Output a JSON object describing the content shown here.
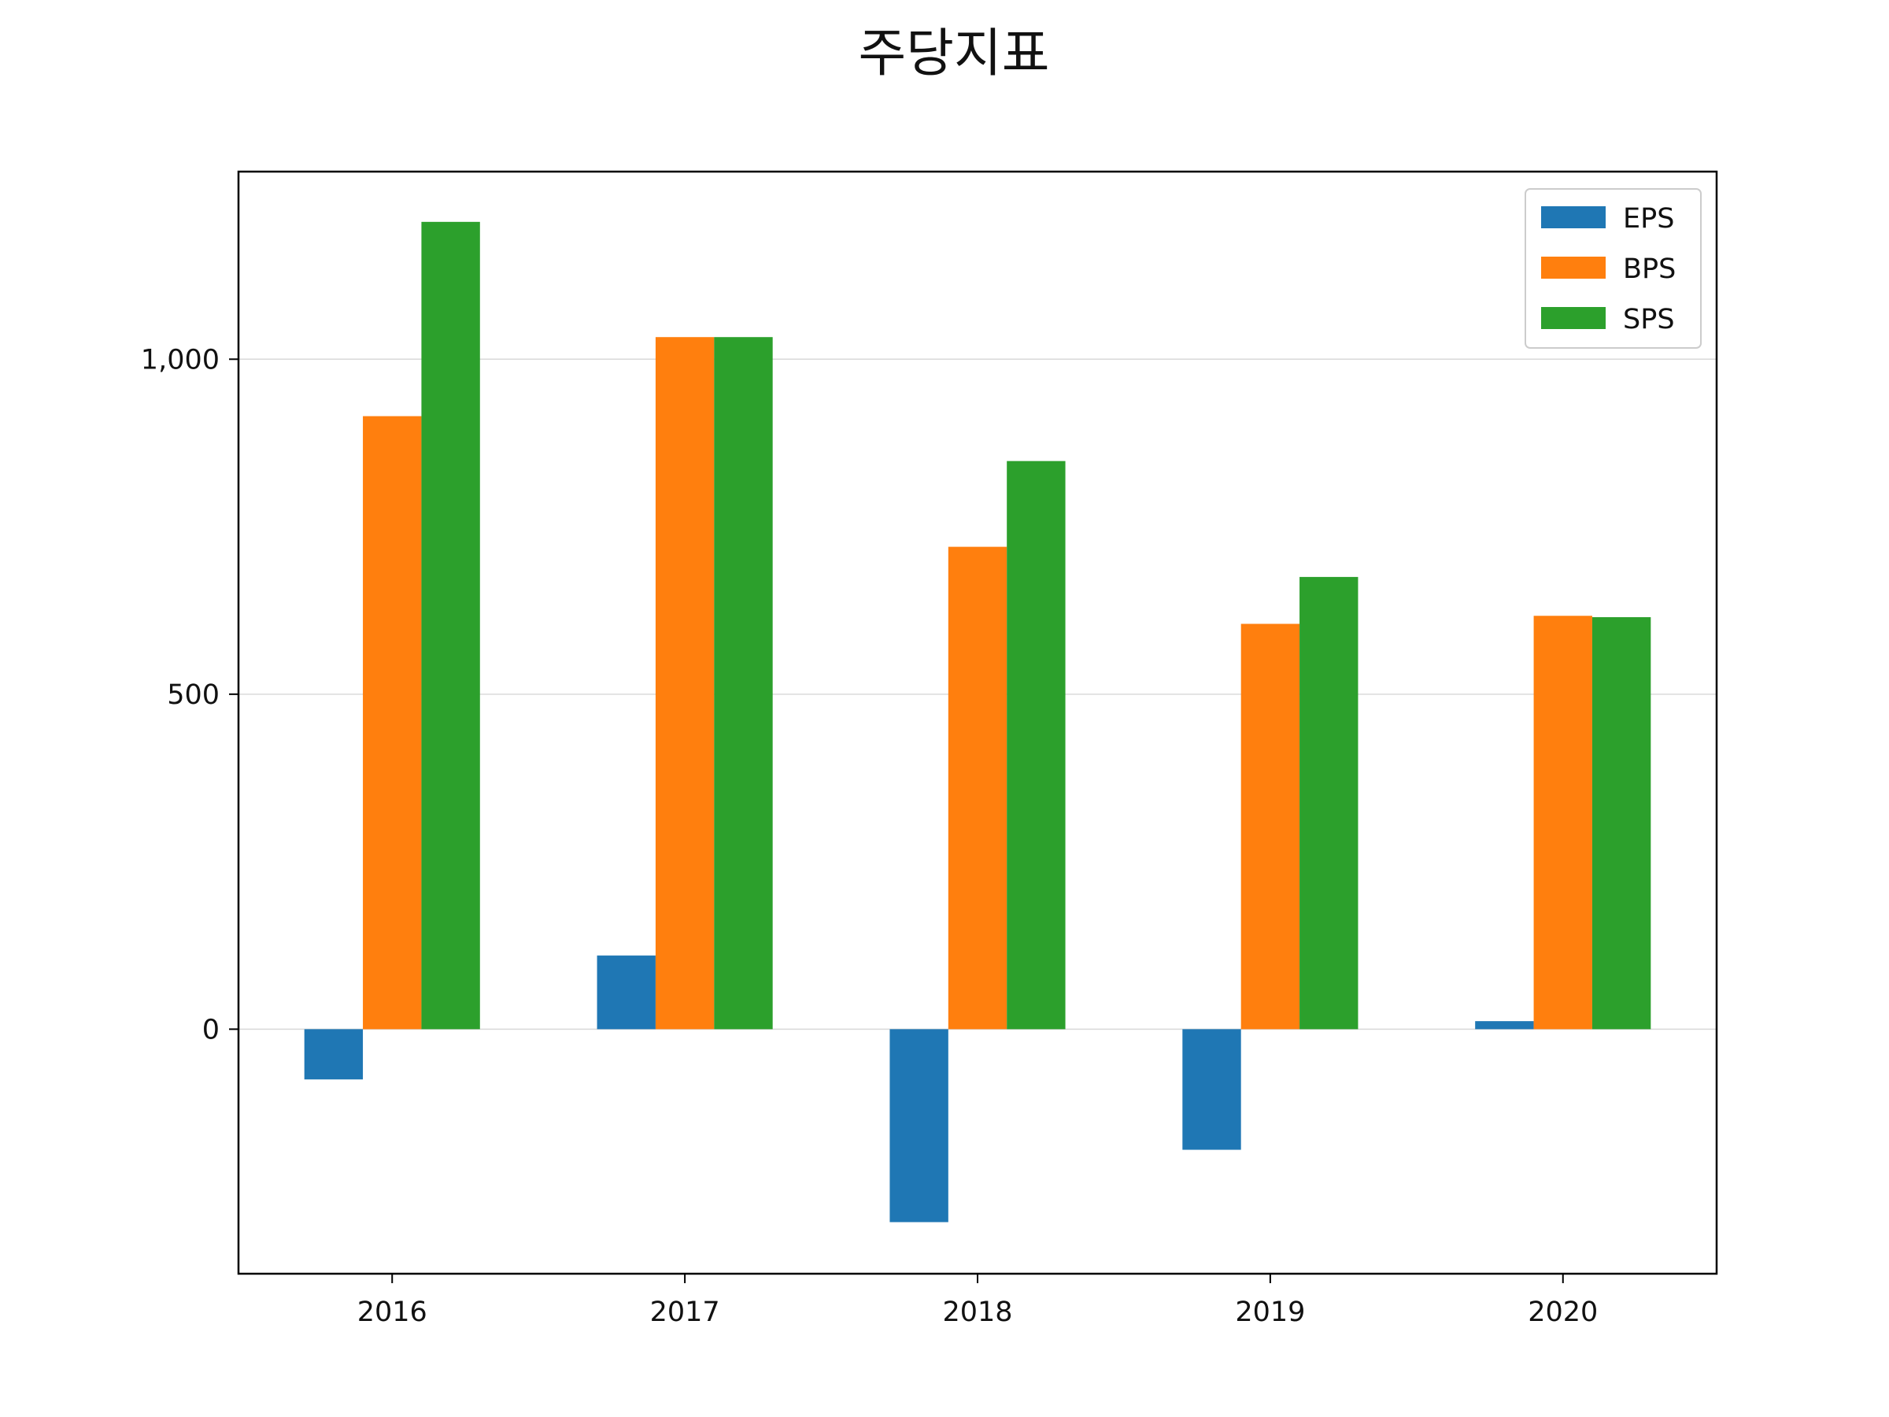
{
  "chart_data": {
    "type": "bar",
    "title": "주당지표",
    "xlabel": "",
    "ylabel": "",
    "categories": [
      "2016",
      "2017",
      "2018",
      "2019",
      "2020"
    ],
    "series": [
      {
        "name": "EPS",
        "color": "#1f77b4",
        "values": [
          -75,
          110,
          -288,
          -180,
          12
        ]
      },
      {
        "name": "BPS",
        "color": "#ff7f0e",
        "values": [
          915,
          1033,
          720,
          605,
          617
        ]
      },
      {
        "name": "SPS",
        "color": "#2ca02c",
        "values": [
          1205,
          1033,
          848,
          675,
          615
        ]
      }
    ],
    "ylim": [
      -365,
      1280
    ],
    "yticks": [
      {
        "value": 0,
        "label": "0"
      },
      {
        "value": 500,
        "label": "500"
      },
      {
        "value": 1000,
        "label": "1,000"
      }
    ],
    "grid": "horizontal",
    "legend_position": "top-right"
  }
}
